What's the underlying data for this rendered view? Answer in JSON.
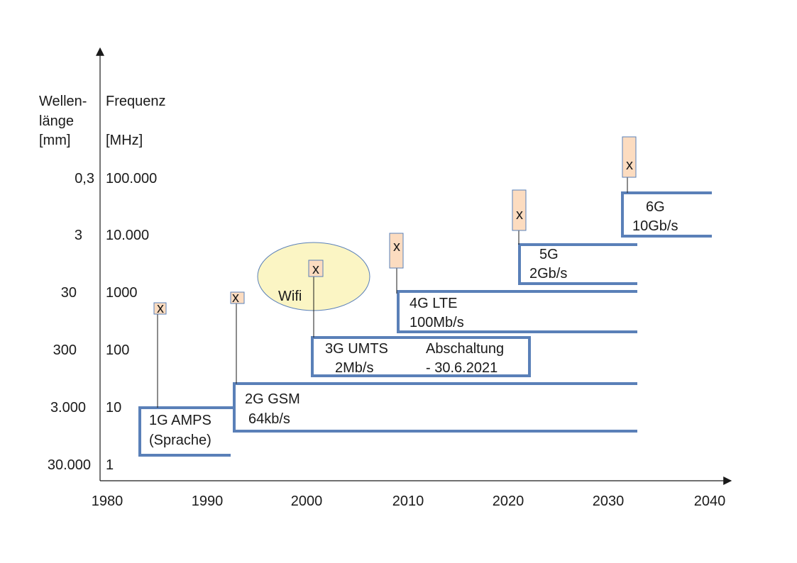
{
  "axis_headers": {
    "wavelength": [
      "Wellen-",
      "länge",
      "[mm]"
    ],
    "frequency": [
      "Frequenz",
      "[MHz]"
    ]
  },
  "wavelength_ticks": [
    "0,3",
    "3",
    "30",
    "300",
    "3.000",
    "30.000"
  ],
  "frequency_ticks": [
    "100.000",
    "10.000",
    "1000",
    "100",
    "10",
    "1"
  ],
  "year_ticks": [
    "1980",
    "1990",
    "2000",
    "2010",
    "2020",
    "2030",
    "2040"
  ],
  "generations": {
    "g1": [
      "1G AMPS",
      "(Sprache)"
    ],
    "g2": [
      "2G GSM",
      "64kb/s"
    ],
    "g3": [
      "3G UMTS",
      "2Mb/s"
    ],
    "g3_note": [
      "Abschaltung",
      "- 30.6.2021"
    ],
    "g4": [
      "4G LTE",
      "100Mb/s"
    ],
    "g5": [
      "5G",
      "2Gb/s"
    ],
    "g6": [
      "6G",
      "10Gb/s"
    ]
  },
  "wifi_label": "Wifi",
  "marker_glyph": "x",
  "colors": {
    "band_stroke": "#5a80b8",
    "marker_fill": "#fcdcc0",
    "wifi_fill": "#fbf5c4",
    "wifi_stroke": "#5a80b8"
  }
}
